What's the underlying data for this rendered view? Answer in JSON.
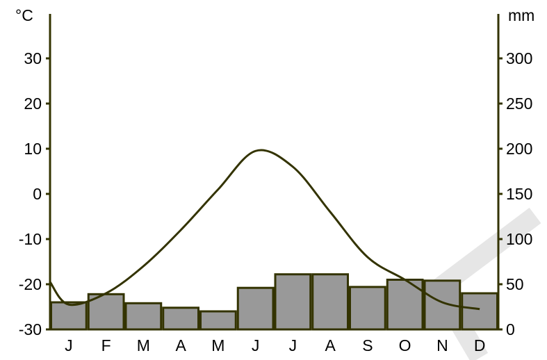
{
  "chart_data": {
    "type": "bar",
    "subtype": "climate-diagram",
    "categories": [
      "J",
      "F",
      "M",
      "A",
      "M",
      "J",
      "J",
      "A",
      "S",
      "O",
      "N",
      "D"
    ],
    "series": [
      {
        "kind": "bar",
        "axis": "right",
        "values": [
          30,
          39,
          29,
          24,
          20,
          46,
          61,
          61,
          47,
          55,
          54,
          40
        ]
      },
      {
        "kind": "line",
        "axis": "left",
        "values": [
          -24.5,
          -22,
          -16,
          -8,
          1,
          9.5,
          6,
          -4,
          -14,
          -19,
          -24,
          -25.5
        ]
      }
    ],
    "left_axis": {
      "unit": "°C",
      "ticks": [
        30,
        20,
        10,
        0,
        -10,
        -20,
        -30
      ],
      "range": [
        -30,
        40
      ]
    },
    "right_axis": {
      "unit": "mm",
      "ticks": [
        300,
        250,
        200,
        150,
        100,
        50,
        0
      ],
      "range": [
        0,
        350
      ]
    },
    "colors": {
      "bar_fill": "#999999",
      "bar_stroke": "#333300",
      "line": "#333300",
      "axis": "#333300",
      "watermark": "#e6e6e6"
    }
  }
}
